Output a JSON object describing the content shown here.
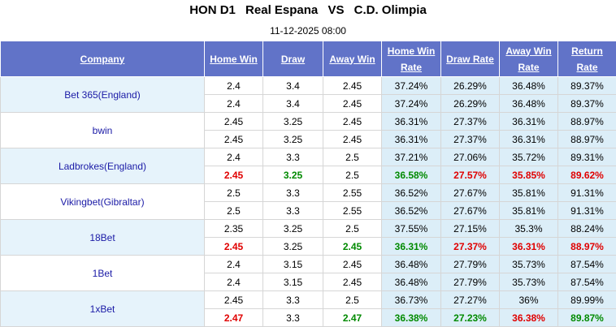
{
  "header": {
    "league": "HON D1",
    "home": "Real Espana",
    "vs": "VS",
    "away": "C.D. Olimpia",
    "datetime": "11-12-2025 08:00"
  },
  "table": {
    "columns": [
      "Company",
      "Home Win",
      "Draw",
      "Away Win",
      "Home Win Rate",
      "Draw Rate",
      "Away Win Rate",
      "Return Rate"
    ],
    "companies": [
      {
        "name": "Bet 365(England)",
        "rows": [
          {
            "cells": [
              "2.4",
              "3.4",
              "2.45",
              "37.24%",
              "26.29%",
              "36.48%",
              "89.37%"
            ]
          },
          {
            "cells": [
              "2.4",
              "3.4",
              "2.45",
              "37.24%",
              "26.29%",
              "36.48%",
              "89.37%"
            ]
          }
        ]
      },
      {
        "name": "bwin",
        "rows": [
          {
            "cells": [
              "2.45",
              "3.25",
              "2.45",
              "36.31%",
              "27.37%",
              "36.31%",
              "88.97%"
            ]
          },
          {
            "cells": [
              "2.45",
              "3.25",
              "2.45",
              "36.31%",
              "27.37%",
              "36.31%",
              "88.97%"
            ]
          }
        ]
      },
      {
        "name": "Ladbrokes(England)",
        "rows": [
          {
            "cells": [
              "2.4",
              "3.3",
              "2.5",
              "37.21%",
              "27.06%",
              "35.72%",
              "89.31%"
            ]
          },
          {
            "cells": [
              "2.45",
              "3.25",
              "2.5",
              "36.58%",
              "27.57%",
              "35.85%",
              "89.62%"
            ],
            "colors": [
              "red",
              "green",
              "black",
              "green",
              "red",
              "red",
              "red"
            ]
          }
        ]
      },
      {
        "name": "Vikingbet(Gibraltar)",
        "rows": [
          {
            "cells": [
              "2.5",
              "3.3",
              "2.55",
              "36.52%",
              "27.67%",
              "35.81%",
              "91.31%"
            ]
          },
          {
            "cells": [
              "2.5",
              "3.3",
              "2.55",
              "36.52%",
              "27.67%",
              "35.81%",
              "91.31%"
            ]
          }
        ]
      },
      {
        "name": "18Bet",
        "rows": [
          {
            "cells": [
              "2.35",
              "3.25",
              "2.5",
              "37.55%",
              "27.15%",
              "35.3%",
              "88.24%"
            ]
          },
          {
            "cells": [
              "2.45",
              "3.25",
              "2.45",
              "36.31%",
              "27.37%",
              "36.31%",
              "88.97%"
            ],
            "colors": [
              "red",
              "black",
              "green",
              "green",
              "red",
              "red",
              "red"
            ]
          }
        ]
      },
      {
        "name": "1Bet",
        "rows": [
          {
            "cells": [
              "2.4",
              "3.15",
              "2.45",
              "36.48%",
              "27.79%",
              "35.73%",
              "87.54%"
            ]
          },
          {
            "cells": [
              "2.4",
              "3.15",
              "2.45",
              "36.48%",
              "27.79%",
              "35.73%",
              "87.54%"
            ]
          }
        ]
      },
      {
        "name": "1xBet",
        "rows": [
          {
            "cells": [
              "2.45",
              "3.3",
              "2.5",
              "36.73%",
              "27.27%",
              "36%",
              "89.99%"
            ]
          },
          {
            "cells": [
              "2.47",
              "3.3",
              "2.47",
              "36.38%",
              "27.23%",
              "36.38%",
              "89.87%"
            ],
            "colors": [
              "red",
              "black",
              "green",
              "green",
              "green",
              "red",
              "green"
            ]
          }
        ]
      }
    ]
  }
}
